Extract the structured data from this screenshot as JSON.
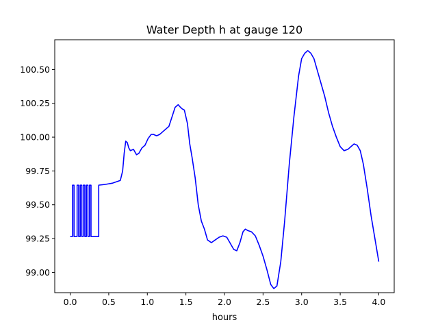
{
  "chart_data": {
    "type": "line",
    "title": "Water Depth h at gauge 120",
    "xlabel": "hours",
    "ylabel": "",
    "xlim": [
      -0.2,
      4.2
    ],
    "ylim": [
      98.85,
      100.72
    ],
    "xticks": [
      0.0,
      0.5,
      1.0,
      1.5,
      2.0,
      2.5,
      3.0,
      3.5,
      4.0
    ],
    "xtick_labels": [
      "0.0",
      "0.5",
      "1.0",
      "1.5",
      "2.0",
      "2.5",
      "3.0",
      "3.5",
      "4.0"
    ],
    "yticks": [
      99.0,
      99.25,
      99.5,
      99.75,
      100.0,
      100.25,
      100.5
    ],
    "ytick_labels": [
      "99.00",
      "99.25",
      "99.50",
      "99.75",
      "100.00",
      "100.25",
      "100.50"
    ],
    "grid": false,
    "series": [
      {
        "color": "#0000ff",
        "x": [
          0.0,
          0.03,
          0.03,
          0.05,
          0.05,
          0.09,
          0.09,
          0.11,
          0.11,
          0.13,
          0.13,
          0.15,
          0.15,
          0.17,
          0.17,
          0.19,
          0.19,
          0.21,
          0.21,
          0.23,
          0.23,
          0.25,
          0.25,
          0.27,
          0.27,
          0.37,
          0.37,
          0.45,
          0.55,
          0.65,
          0.68,
          0.7,
          0.72,
          0.74,
          0.76,
          0.78,
          0.82,
          0.86,
          0.89,
          0.93,
          0.97,
          1.01,
          1.05,
          1.08,
          1.12,
          1.16,
          1.2,
          1.24,
          1.28,
          1.32,
          1.36,
          1.4,
          1.43,
          1.45,
          1.48,
          1.52,
          1.55,
          1.58,
          1.62,
          1.66,
          1.7,
          1.74,
          1.78,
          1.83,
          1.88,
          1.93,
          1.98,
          2.03,
          2.08,
          2.12,
          2.16,
          2.2,
          2.24,
          2.27,
          2.3,
          2.35,
          2.4,
          2.45,
          2.5,
          2.55,
          2.6,
          2.64,
          2.68,
          2.73,
          2.78,
          2.84,
          2.9,
          2.96,
          3.0,
          3.04,
          3.08,
          3.12,
          3.16,
          3.2,
          3.25,
          3.3,
          3.35,
          3.4,
          3.45,
          3.5,
          3.55,
          3.6,
          3.64,
          3.68,
          3.72,
          3.76,
          3.8,
          3.85,
          3.9,
          3.95,
          4.0
        ],
        "y": [
          99.265,
          99.265,
          99.645,
          99.645,
          99.265,
          99.265,
          99.645,
          99.645,
          99.265,
          99.265,
          99.645,
          99.645,
          99.265,
          99.265,
          99.645,
          99.645,
          99.265,
          99.265,
          99.645,
          99.645,
          99.265,
          99.265,
          99.645,
          99.645,
          99.265,
          99.265,
          99.645,
          99.65,
          99.66,
          99.68,
          99.75,
          99.88,
          99.97,
          99.96,
          99.92,
          99.9,
          99.91,
          99.87,
          99.88,
          99.92,
          99.94,
          99.99,
          100.02,
          100.02,
          100.01,
          100.02,
          100.04,
          100.06,
          100.08,
          100.15,
          100.22,
          100.24,
          100.22,
          100.21,
          100.2,
          100.1,
          99.95,
          99.85,
          99.7,
          99.5,
          99.38,
          99.32,
          99.24,
          99.22,
          99.24,
          99.26,
          99.27,
          99.26,
          99.21,
          99.17,
          99.16,
          99.22,
          99.3,
          99.32,
          99.31,
          99.3,
          99.27,
          99.2,
          99.12,
          99.02,
          98.91,
          98.88,
          98.9,
          99.08,
          99.38,
          99.8,
          100.15,
          100.45,
          100.58,
          100.62,
          100.64,
          100.62,
          100.58,
          100.5,
          100.4,
          100.3,
          100.18,
          100.08,
          100.0,
          99.93,
          99.9,
          99.91,
          99.93,
          99.95,
          99.94,
          99.9,
          99.8,
          99.62,
          99.42,
          99.25,
          99.08
        ]
      }
    ]
  }
}
